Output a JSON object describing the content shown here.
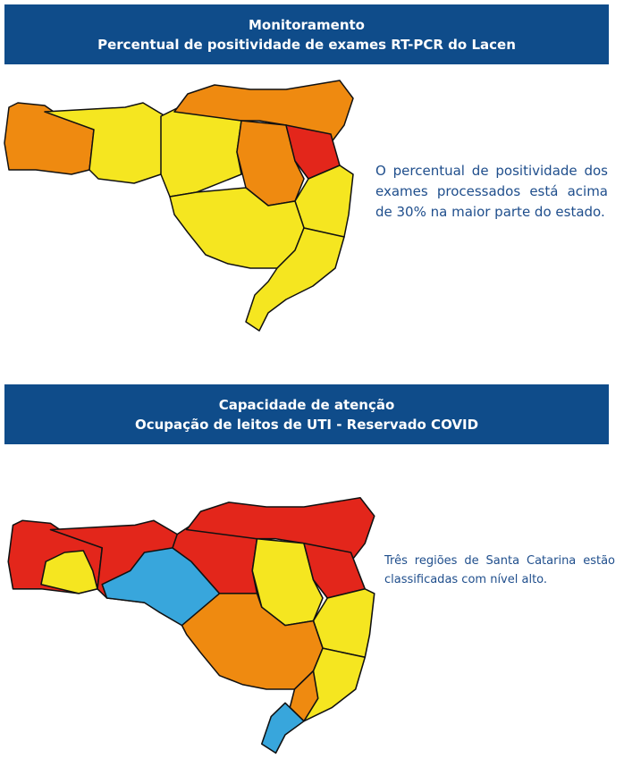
{
  "panels": [
    {
      "header": {
        "line1": "Monitoramento",
        "line2": "Percentual de positividade de exames RT-PCR do Lacen"
      },
      "text": "O percentual de positividade dos exames processados está acima de 30% na maior parte do estado."
    },
    {
      "header": {
        "line1": "Capacidade de atenção",
        "line2": "Ocupação de leitos de UTI - Reservado COVID"
      },
      "text": "Três regiões de Santa Catarina estão classificadas com nível alto."
    }
  ]
}
